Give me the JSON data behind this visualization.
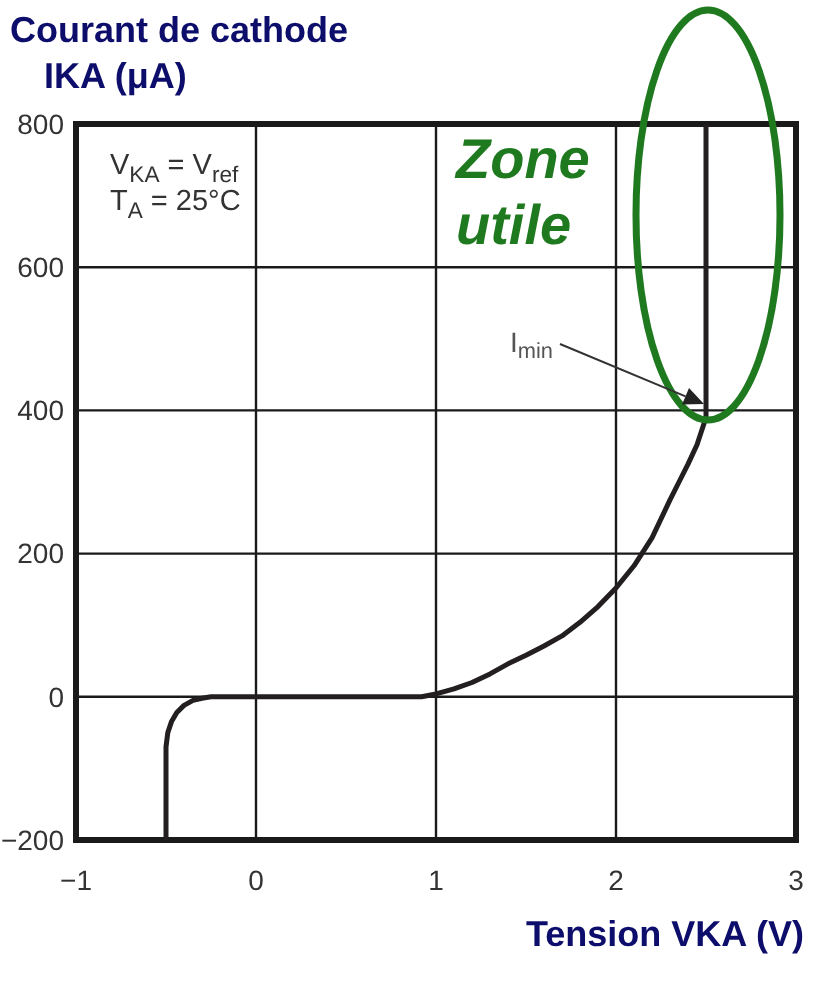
{
  "chart_data": {
    "type": "line",
    "xlabel": "Tension VKA (V)",
    "ylabel": "Courant de cathode\nIKA (μA)",
    "x": [
      -0.5,
      -0.5,
      -0.49,
      -0.47,
      -0.44,
      -0.4,
      -0.35,
      -0.3,
      -0.25,
      0,
      0.5,
      0.92,
      1.0,
      1.1,
      1.2,
      1.3,
      1.4,
      1.5,
      1.6,
      1.7,
      1.8,
      1.9,
      2.0,
      2.1,
      2.2,
      2.3,
      2.35,
      2.4,
      2.45,
      2.5,
      2.5
    ],
    "series": [
      {
        "color": "#231f20",
        "values": [
          -200,
          -70,
          -50,
          -35,
          -22,
          -12,
          -5,
          -2,
          0,
          0,
          0,
          0,
          4,
          11,
          20,
          32,
          46,
          58,
          71,
          85,
          104,
          126,
          152,
          183,
          222,
          275,
          300,
          325,
          352,
          390,
          800
        ]
      }
    ],
    "xlim": [
      -1,
      3
    ],
    "ylim": [
      -200,
      800
    ],
    "xticks": [
      {
        "value": -1,
        "label": "−1"
      },
      0,
      1,
      2,
      3
    ],
    "yticks": [
      {
        "value": -200,
        "label": "−200"
      },
      0,
      200,
      400,
      600,
      800
    ],
    "grid": true,
    "annotations": [
      "V$_{KA}$ = V$_{ref}$\nT$_{A}$ = 25°C",
      "Zone\nutile",
      "I$_{min}$"
    ]
  }
}
